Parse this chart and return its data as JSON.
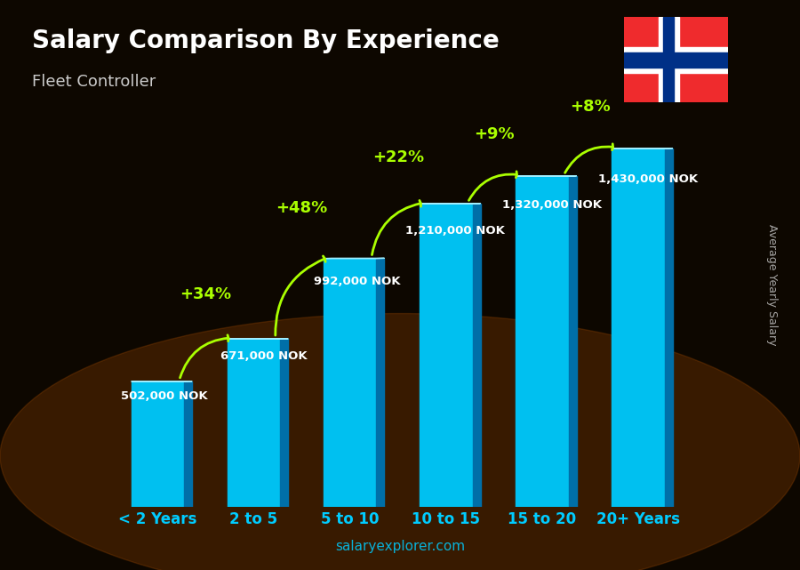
{
  "title": "Salary Comparison By Experience",
  "subtitle": "Fleet Controller",
  "ylabel": "Average Yearly Salary",
  "watermark": "salaryexplorer.com",
  "categories": [
    "< 2 Years",
    "2 to 5",
    "5 to 10",
    "10 to 15",
    "15 to 20",
    "20+ Years"
  ],
  "values": [
    502000,
    671000,
    992000,
    1210000,
    1320000,
    1430000
  ],
  "value_labels": [
    "502,000 NOK",
    "671,000 NOK",
    "992,000 NOK",
    "1,210,000 NOK",
    "1,320,000 NOK",
    "1,430,000 NOK"
  ],
  "pct_changes": [
    "+34%",
    "+48%",
    "+22%",
    "+9%",
    "+8%"
  ],
  "bar_color_top": "#00c8ff",
  "bar_color_side": "#0088bb",
  "bar_color_front": "#00aadd",
  "bg_color_top": "#1a0a00",
  "title_color": "#ffffff",
  "subtitle_color": "#cccccc",
  "label_color": "#ffffff",
  "pct_color": "#aaff00",
  "tick_color": "#00ccff",
  "watermark_color": "#00ccff"
}
